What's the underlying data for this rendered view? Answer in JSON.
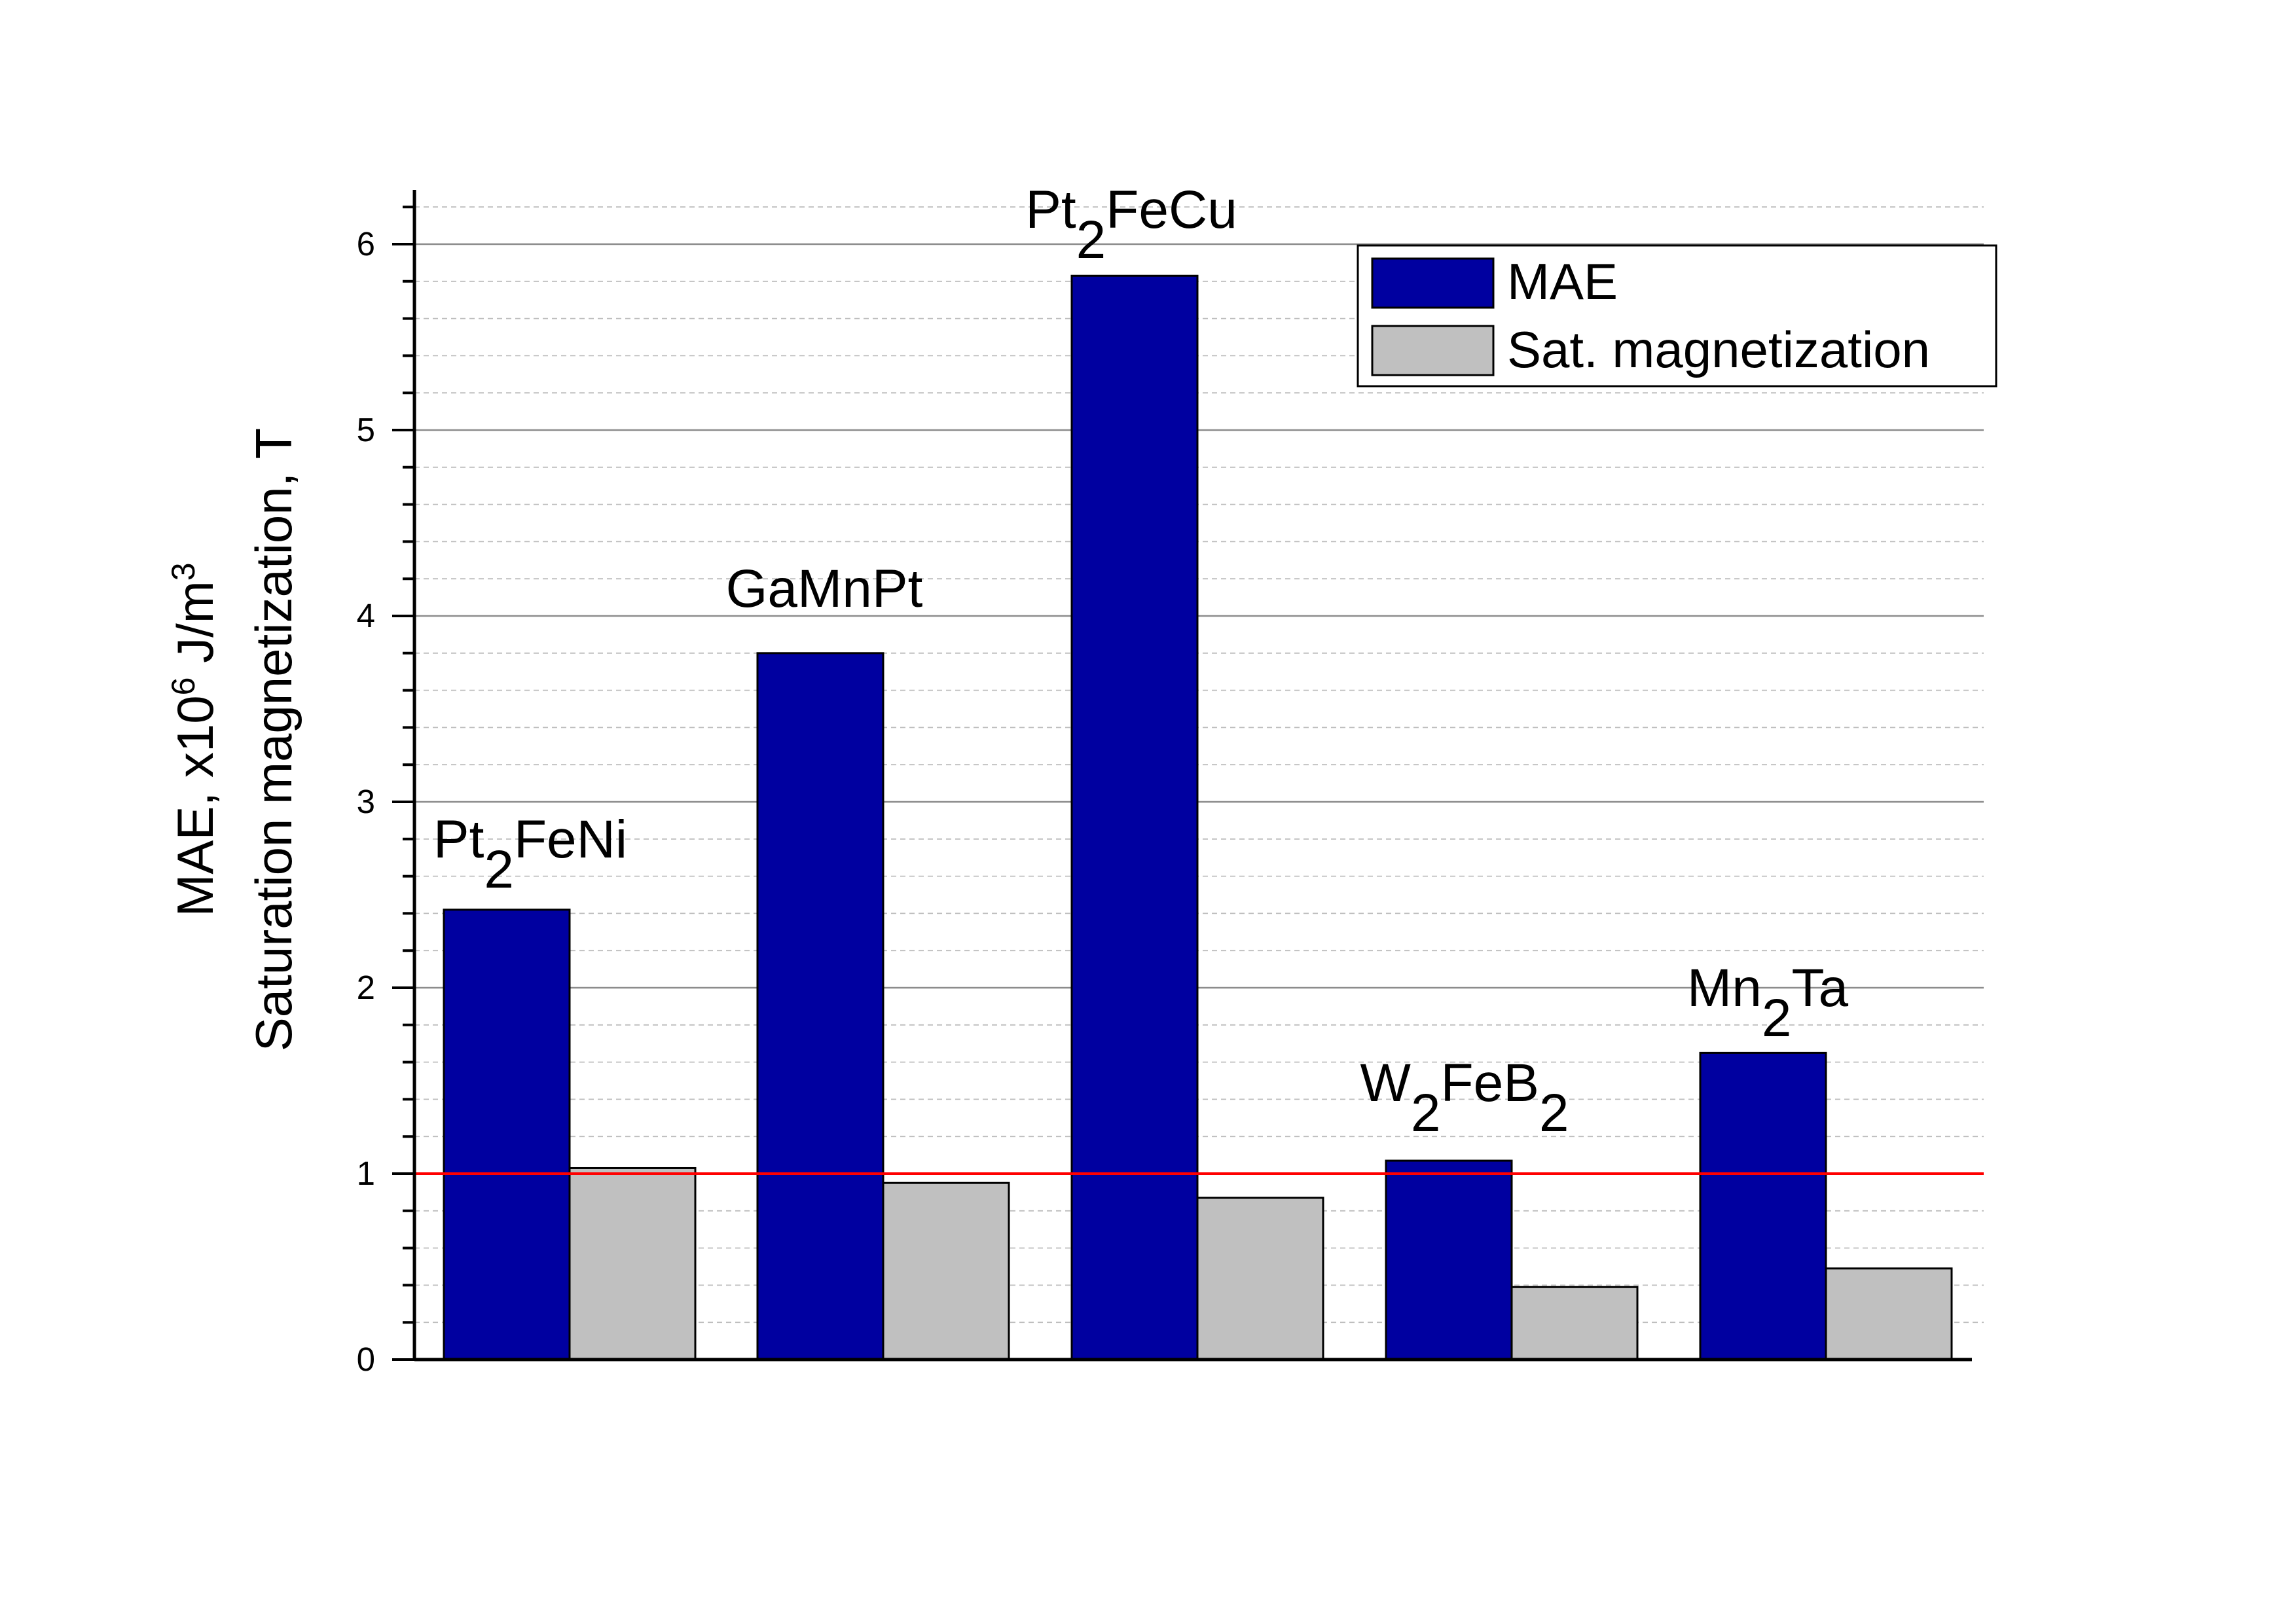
{
  "chart_data": {
    "type": "bar",
    "categories": [
      "Pt2FeNi",
      "GaMnPt",
      "Pt2FeCu",
      "W2FeB2",
      "Mn2Ta"
    ],
    "bar_labels": [
      [
        {
          "t": "Pt"
        },
        {
          "t": "2",
          "sub": true
        },
        {
          "t": "FeNi"
        }
      ],
      [
        {
          "t": "GaMnPt"
        }
      ],
      [
        {
          "t": "Pt"
        },
        {
          "t": "2",
          "sub": true
        },
        {
          "t": "FeCu"
        }
      ],
      [
        {
          "t": "W"
        },
        {
          "t": "2",
          "sub": true
        },
        {
          "t": "FeB"
        },
        {
          "t": "2",
          "sub": true
        }
      ],
      [
        {
          "t": "Mn"
        },
        {
          "t": "2",
          "sub": true
        },
        {
          "t": "Ta"
        }
      ]
    ],
    "series": [
      {
        "name": "MAE",
        "color": "#0000a0",
        "values": [
          2.42,
          3.8,
          5.83,
          1.07,
          1.65
        ]
      },
      {
        "name": "Sat. magnetization",
        "color": "#c0c0c0",
        "values": [
          1.03,
          0.95,
          0.87,
          0.39,
          0.49
        ]
      }
    ],
    "reference_line": {
      "y": 1,
      "color": "#ff0000"
    },
    "ylim": [
      0,
      6.3
    ],
    "yticks": [
      0,
      1,
      2,
      3,
      4,
      5,
      6
    ],
    "ylabel_line1": [
      "MAE, x10",
      "6",
      " J/m",
      "3"
    ],
    "ylabel_line2": "Saturation magnetization, T",
    "grid": true,
    "legend_position": "top-right"
  }
}
